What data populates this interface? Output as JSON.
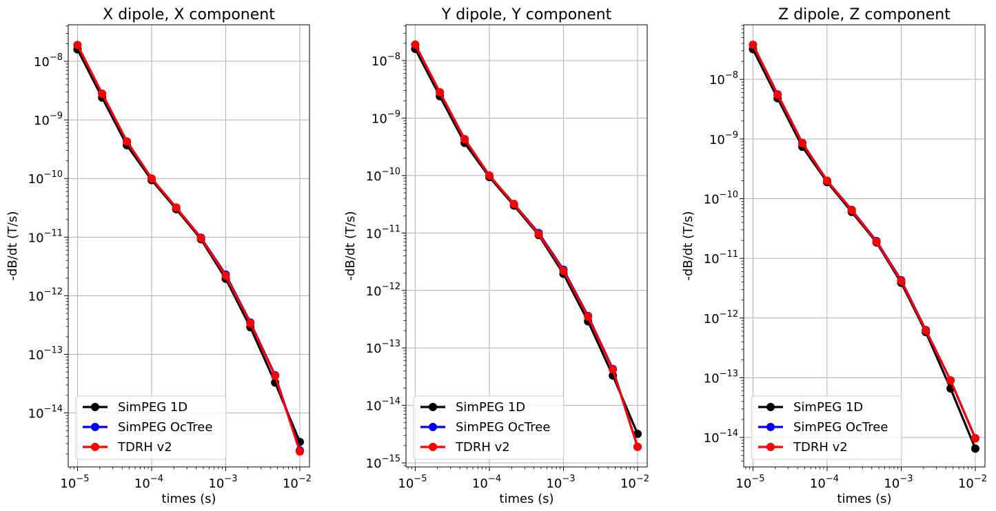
{
  "chart_data": [
    {
      "type": "line",
      "title": "X dipole, X component",
      "xlabel": "times (s)",
      "ylabel": "-dB/dt (T/s)",
      "xscale": "log",
      "yscale": "log",
      "xlim": [
        7.5e-06,
        0.0135
      ],
      "ylim": [
        1.2e-15,
        4.2e-08
      ],
      "grid": true,
      "legend_position": "lower-left",
      "x": [
        1e-05,
        2.15e-05,
        4.64e-05,
        0.0001,
        0.000215,
        0.000464,
        0.001,
        0.00215,
        0.00464,
        0.01
      ],
      "xticks": [
        1e-05,
        0.0001,
        0.001,
        0.01
      ],
      "xtick_labels": [
        [
          "10",
          "−5"
        ],
        [
          "10",
          "−4"
        ],
        [
          "10",
          "−3"
        ],
        [
          "10",
          "−2"
        ]
      ],
      "yticks": [
        1e-14,
        1e-13,
        1e-12,
        1e-11,
        1e-10,
        1e-09,
        1e-08
      ],
      "ytick_labels": [
        [
          "10",
          "−14"
        ],
        [
          "10",
          "−13"
        ],
        [
          "10",
          "−12"
        ],
        [
          "10",
          "−11"
        ],
        [
          "10",
          "−10"
        ],
        [
          "10",
          "−9"
        ],
        [
          "10",
          "−8"
        ]
      ],
      "series": [
        {
          "name": "SimPEG 1D",
          "color": "#000000",
          "values": [
            1.6e-08,
            2.4e-09,
            3.7e-10,
            9.4e-11,
            3e-11,
            9.2e-12,
            1.95e-12,
            2.9e-13,
            3.3e-14,
            3.2e-15
          ]
        },
        {
          "name": "SimPEG OcTree",
          "color": "#0000ff",
          "values": [
            1.9e-08,
            2.8e-09,
            4.3e-10,
            1e-10,
            3.2e-11,
            9.8e-12,
            2.3e-12,
            3.5e-13,
            4.4e-14,
            2.3e-15
          ]
        },
        {
          "name": "TDRH v2",
          "color": "#ff0000",
          "values": [
            1.9e-08,
            2.8e-09,
            4.3e-10,
            1e-10,
            3.2e-11,
            9.6e-12,
            2.2e-12,
            3.4e-13,
            4.3e-14,
            2.2e-15
          ]
        }
      ]
    },
    {
      "type": "line",
      "title": "Y dipole, Y component",
      "xlabel": "times (s)",
      "ylabel": "-dB/dt (T/s)",
      "xscale": "log",
      "yscale": "log",
      "xlim": [
        7.5e-06,
        0.0135
      ],
      "ylim": [
        8.5e-16,
        4.2e-08
      ],
      "grid": true,
      "legend_position": "lower-left",
      "x": [
        1e-05,
        2.15e-05,
        4.64e-05,
        0.0001,
        0.000215,
        0.000464,
        0.001,
        0.00215,
        0.00464,
        0.01
      ],
      "xticks": [
        1e-05,
        0.0001,
        0.001,
        0.01
      ],
      "xtick_labels": [
        [
          "10",
          "−5"
        ],
        [
          "10",
          "−4"
        ],
        [
          "10",
          "−3"
        ],
        [
          "10",
          "−2"
        ]
      ],
      "yticks": [
        1e-15,
        1e-14,
        1e-13,
        1e-12,
        1e-11,
        1e-10,
        1e-09,
        1e-08
      ],
      "ytick_labels": [
        [
          "10",
          "−15"
        ],
        [
          "10",
          "−14"
        ],
        [
          "10",
          "−13"
        ],
        [
          "10",
          "−12"
        ],
        [
          "10",
          "−11"
        ],
        [
          "10",
          "−10"
        ],
        [
          "10",
          "−9"
        ],
        [
          "10",
          "−8"
        ]
      ],
      "series": [
        {
          "name": "SimPEG 1D",
          "color": "#000000",
          "values": [
            1.6e-08,
            2.4e-09,
            3.7e-10,
            9.4e-11,
            3e-11,
            9.2e-12,
            1.95e-12,
            2.9e-13,
            3.3e-14,
            3.2e-15
          ]
        },
        {
          "name": "SimPEG OcTree",
          "color": "#0000ff",
          "values": [
            1.9e-08,
            2.8e-09,
            4.3e-10,
            1e-10,
            3.2e-11,
            1e-11,
            2.3e-12,
            3.6e-13,
            4.3e-14,
            1.9e-15
          ]
        },
        {
          "name": "TDRH v2",
          "color": "#ff0000",
          "values": [
            1.9e-08,
            2.8e-09,
            4.3e-10,
            1e-10,
            3.2e-11,
            9.6e-12,
            2.2e-12,
            3.5e-13,
            4.2e-14,
            1.9e-15
          ]
        }
      ]
    },
    {
      "type": "line",
      "title": "Z dipole, Z component",
      "xlabel": "times (s)",
      "ylabel": "-dB/dt (T/s)",
      "xscale": "log",
      "yscale": "log",
      "xlim": [
        7.5e-06,
        0.0135
      ],
      "ylim": [
        3.2e-15,
        8.2e-08
      ],
      "grid": true,
      "legend_position": "lower-left",
      "x": [
        1e-05,
        2.15e-05,
        4.64e-05,
        0.0001,
        0.000215,
        0.000464,
        0.001,
        0.00215,
        0.00464,
        0.01
      ],
      "xticks": [
        1e-05,
        0.0001,
        0.001,
        0.01
      ],
      "xtick_labels": [
        [
          "10",
          "−5"
        ],
        [
          "10",
          "−4"
        ],
        [
          "10",
          "−3"
        ],
        [
          "10",
          "−2"
        ]
      ],
      "yticks": [
        1e-14,
        1e-13,
        1e-12,
        1e-11,
        1e-10,
        1e-09,
        1e-08
      ],
      "ytick_labels": [
        [
          "10",
          "−14"
        ],
        [
          "10",
          "−13"
        ],
        [
          "10",
          "−12"
        ],
        [
          "10",
          "−11"
        ],
        [
          "10",
          "−10"
        ],
        [
          "10",
          "−9"
        ],
        [
          "10",
          "−8"
        ]
      ],
      "series": [
        {
          "name": "SimPEG 1D",
          "color": "#000000",
          "values": [
            3.2e-08,
            4.8e-09,
            7.4e-10,
            1.9e-10,
            6e-11,
            1.85e-11,
            3.9e-12,
            5.8e-13,
            6.6e-14,
            6.5e-15
          ]
        },
        {
          "name": "SimPEG OcTree",
          "color": "#0000ff",
          "values": [
            3.8e-08,
            5.6e-09,
            8.6e-10,
            2e-10,
            6.5e-11,
            1.95e-11,
            4.3e-12,
            6.3e-13,
            9e-14,
            9.7e-15
          ]
        },
        {
          "name": "TDRH v2",
          "color": "#ff0000",
          "values": [
            3.8e-08,
            5.5e-09,
            8.5e-10,
            2e-10,
            6.4e-11,
            1.9e-11,
            4.2e-12,
            6.2e-13,
            9e-14,
            9.6e-15
          ]
        }
      ]
    }
  ]
}
